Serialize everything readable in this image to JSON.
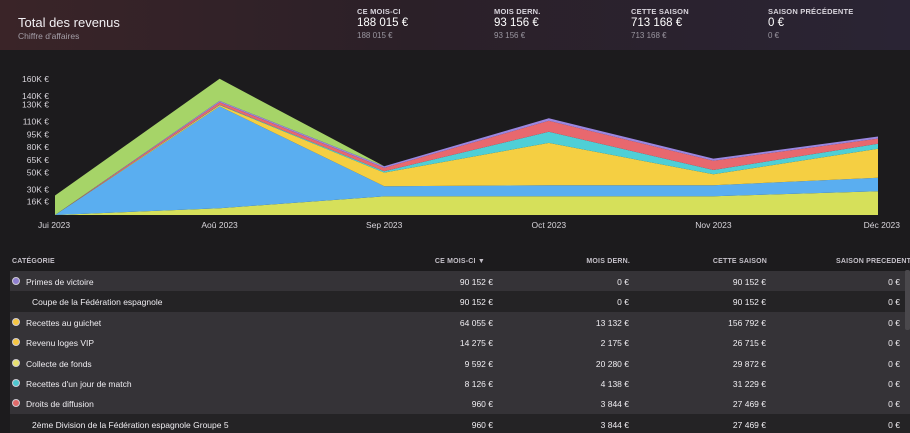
{
  "header": {
    "title": "Total des revenus",
    "subtitle": "Chiffre d'affaires",
    "stats": [
      {
        "label": "CE MOIS-CI",
        "value": "188 015 €",
        "sub": "188 015 €"
      },
      {
        "label": "MOIS DERN.",
        "value": "93 156 €",
        "sub": "93 156 €"
      },
      {
        "label": "CETTE SAISON",
        "value": "713 168 €",
        "sub": "713 168 €"
      },
      {
        "label": "SAISON PRÉCÉDENTE",
        "value": "0 €",
        "sub": "0 €"
      }
    ]
  },
  "chart_data": {
    "type": "area",
    "stacked": true,
    "categories": [
      "Jui 2023",
      "Aoû 2023",
      "Sep 2023",
      "Oct 2023",
      "Nov 2023",
      "Déc 2023"
    ],
    "y_ticks": [
      "16K €",
      "30K €",
      "50K €",
      "65K €",
      "80K €",
      "95K €",
      "110K €",
      "130K €",
      "140K €",
      "160K €"
    ],
    "ylim": [
      0,
      165000
    ],
    "series": [
      {
        "color": "#d6e05a",
        "values": [
          0,
          8000,
          22000,
          22000,
          22000,
          28000
        ]
      },
      {
        "color": "#5aaef0",
        "values": [
          0,
          120000,
          12000,
          13000,
          13000,
          16000
        ]
      },
      {
        "color": "#f5cf42",
        "values": [
          0,
          1500,
          16000,
          50000,
          13000,
          34000
        ]
      },
      {
        "color": "#4fcfd6",
        "values": [
          0,
          500,
          1500,
          13000,
          5000,
          6000
        ]
      },
      {
        "color": "#e8686e",
        "values": [
          0,
          3000,
          4000,
          13000,
          11000,
          6000
        ]
      },
      {
        "color": "#9a86e0",
        "values": [
          0,
          1500,
          2000,
          3000,
          2500,
          2500
        ]
      },
      {
        "color": "#a6d468",
        "values": [
          23000,
          26000,
          0,
          0,
          0,
          0
        ]
      }
    ]
  },
  "table": {
    "columns": [
      "CATÉGORIE",
      "CE MOIS-CI",
      "MOIS DERN.",
      "CETTE SAISON",
      "SAISON PRÉCÉDENTE"
    ],
    "sort_indicator": "▼",
    "rows": [
      {
        "type": "main",
        "badge": "#8f7fd0",
        "name": "Primes de victoire",
        "c1": "90 152 €",
        "c2": "0 €",
        "c3": "90 152 €",
        "c4": "0 €"
      },
      {
        "type": "sub",
        "name": "Coupe de la Fédération espagnole",
        "c1": "90 152 €",
        "c2": "0 €",
        "c3": "90 152 €",
        "c4": "0 €"
      },
      {
        "type": "main",
        "badge": "#f5c542",
        "name": "Recettes au guichet",
        "c1": "64 055 €",
        "c2": "13 132 €",
        "c3": "156 792 €",
        "c4": "0 €"
      },
      {
        "type": "main",
        "badge": "#f5c542",
        "name": "Revenu loges VIP",
        "c1": "14 275 €",
        "c2": "2 175 €",
        "c3": "26 715 €",
        "c4": "0 €"
      },
      {
        "type": "main",
        "badge": "#e8e070",
        "name": "Collecte de fonds",
        "c1": "9 592 €",
        "c2": "20 280 €",
        "c3": "29 872 €",
        "c4": "0 €"
      },
      {
        "type": "main",
        "badge": "#4fc7cf",
        "name": "Recettes d'un jour de match",
        "c1": "8 126 €",
        "c2": "4 138 €",
        "c3": "31 229 €",
        "c4": "0 €"
      },
      {
        "type": "main",
        "badge": "#e06a6a",
        "name": "Droits de diffusion",
        "c1": "960 €",
        "c2": "3 844 €",
        "c3": "27 469 €",
        "c4": "0 €"
      },
      {
        "type": "sub",
        "name": "2ème Division de la Fédération espagnole Groupe 5",
        "c1": "960 €",
        "c2": "3 844 €",
        "c3": "27 469 €",
        "c4": "0 €"
      }
    ]
  }
}
